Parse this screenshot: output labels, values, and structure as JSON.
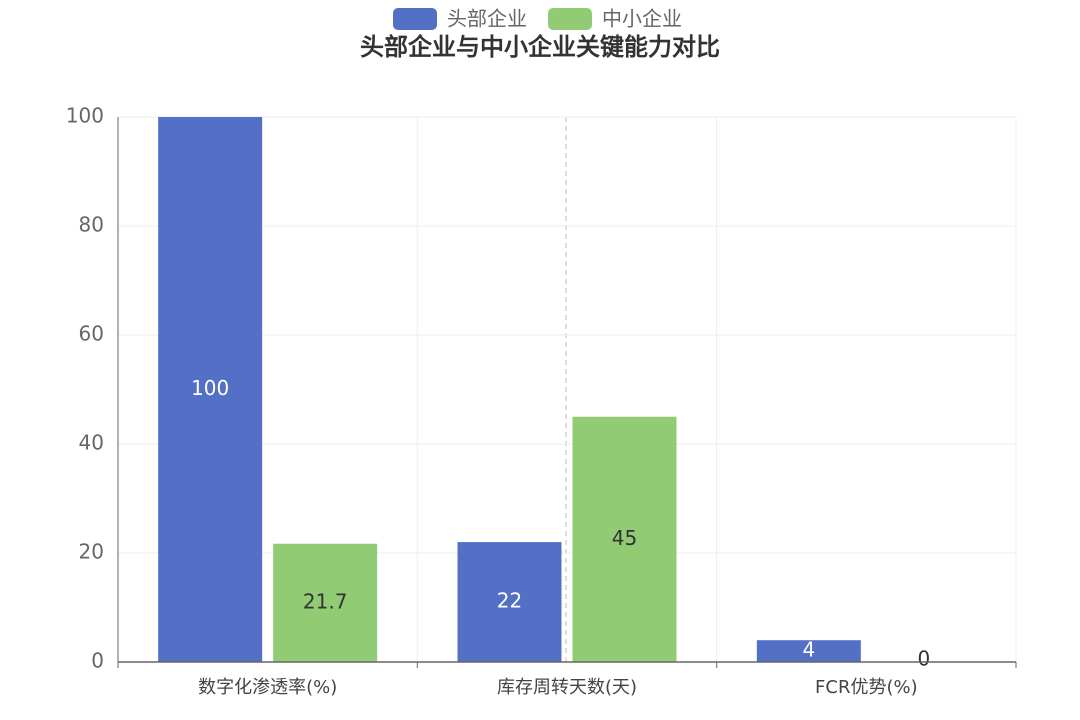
{
  "chart_data": {
    "type": "bar",
    "title": "头部企业与中小企业关键能力对比",
    "categories": [
      "数字化渗透率(%)",
      "库存周转天数(天)",
      "FCR优势(%)"
    ],
    "series": [
      {
        "name": "头部企业",
        "color": "#5470c6",
        "label_color": "#ffffff",
        "values": [
          100,
          22,
          4
        ]
      },
      {
        "name": "中小企业",
        "color": "#91cc75",
        "label_color": "#333333",
        "values": [
          21.7,
          45,
          0
        ]
      }
    ],
    "ylim": [
      0,
      100
    ],
    "yticks": [
      0,
      20,
      40,
      60,
      80,
      100
    ],
    "grid": true
  }
}
